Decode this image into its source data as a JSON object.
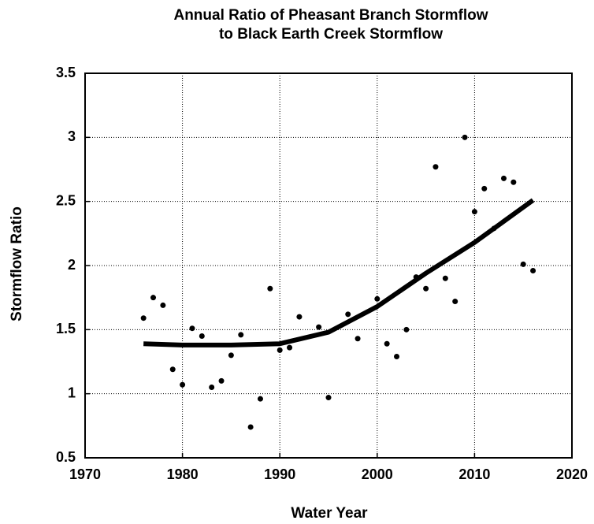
{
  "chart_data": {
    "type": "scatter",
    "title": [
      "Annual Ratio of Pheasant Branch Stormflow",
      "to Black Earth Creek Stormflow"
    ],
    "x_label": "Water Year",
    "y_label": "Stormflow Ratio",
    "xlim": [
      1970,
      2020
    ],
    "xticks": [
      1970,
      1980,
      1990,
      2000,
      2010,
      2020
    ],
    "ylim": [
      0.5,
      3.5
    ],
    "yticks": [
      0.5,
      1,
      1.5,
      2,
      2.5,
      3,
      3.5
    ],
    "grid": true,
    "series": [
      {
        "mode": "points",
        "color": "#000000",
        "x": [
          1976,
          1977,
          1978,
          1979,
          1980,
          1981,
          1982,
          1983,
          1984,
          1985,
          1986,
          1987,
          1988,
          1989,
          1990,
          1991,
          1992,
          1994,
          1995,
          1997,
          1998,
          2000,
          2001,
          2002,
          2003,
          2004,
          2005,
          2006,
          2007,
          2008,
          2009,
          2010,
          2011,
          2012,
          2013,
          2014,
          2015,
          2016
        ],
        "values": [
          1.59,
          1.75,
          1.69,
          1.19,
          1.07,
          1.51,
          1.45,
          1.05,
          1.1,
          1.3,
          1.46,
          0.74,
          0.96,
          1.82,
          1.34,
          1.36,
          1.6,
          1.52,
          0.97,
          1.62,
          1.43,
          1.74,
          1.39,
          1.29,
          1.5,
          1.91,
          1.82,
          2.77,
          1.9,
          1.72,
          3.0,
          2.42,
          2.6,
          2.29,
          2.68,
          2.65,
          2.01,
          1.96
        ]
      },
      {
        "mode": "line",
        "color": "#000000",
        "x": [
          1976,
          1980,
          1985,
          1990,
          1995,
          2000,
          2005,
          2010,
          2016
        ],
        "values": [
          1.39,
          1.38,
          1.38,
          1.39,
          1.48,
          1.68,
          1.94,
          2.18,
          2.51
        ]
      }
    ]
  }
}
